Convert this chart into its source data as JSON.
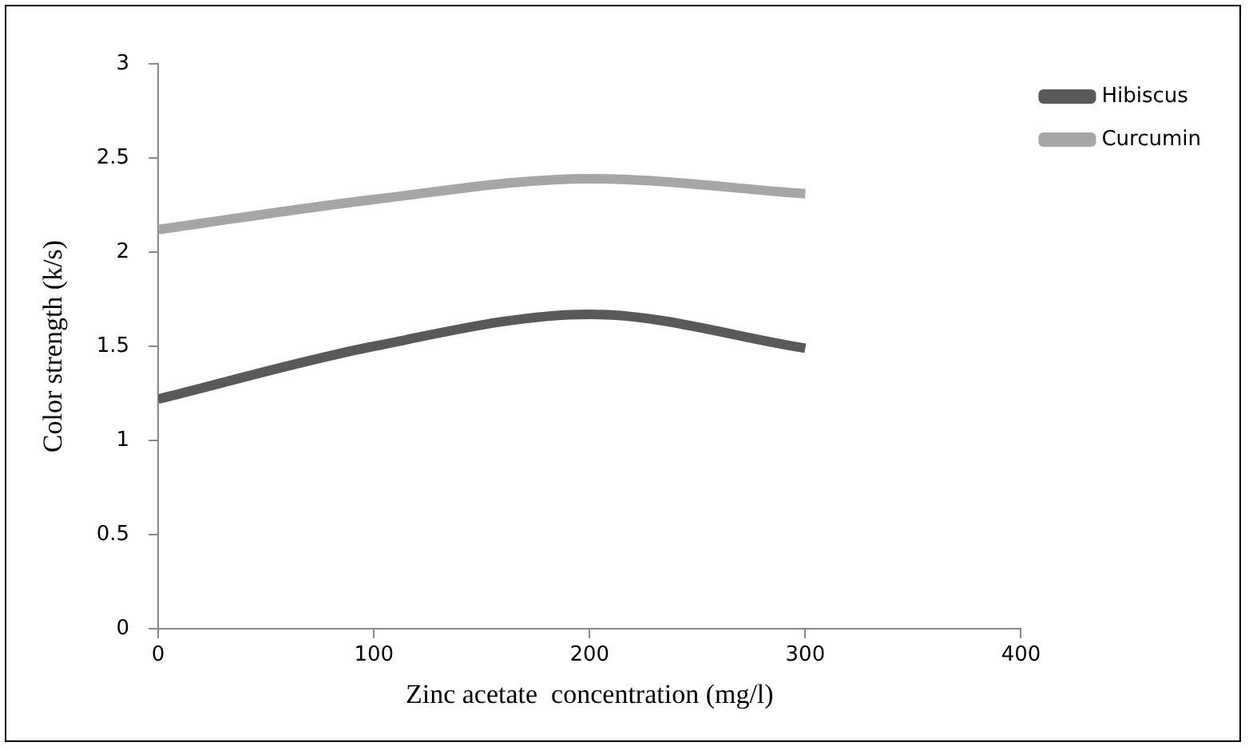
{
  "chart_data": {
    "type": "line",
    "xlabel": "Zinc acetate  concentration (mg/l)",
    "ylabel": "Color strength (k/s)",
    "x": [
      0,
      100,
      200,
      300
    ],
    "series": [
      {
        "name": "Hibiscus",
        "color": "#595959",
        "values": [
          1.22,
          1.5,
          1.67,
          1.49
        ]
      },
      {
        "name": "Curcumin",
        "color": "#a6a6a6",
        "values": [
          2.12,
          2.28,
          2.39,
          2.31
        ]
      }
    ],
    "xlim": [
      0,
      400
    ],
    "xticks": [
      0,
      100,
      200,
      300,
      400
    ],
    "ylim": [
      0,
      3
    ],
    "yticks": [
      0,
      0.5,
      1,
      1.5,
      2,
      2.5,
      3
    ],
    "grid": false,
    "legend": "top right",
    "marker": "none",
    "line_style": "solid"
  }
}
